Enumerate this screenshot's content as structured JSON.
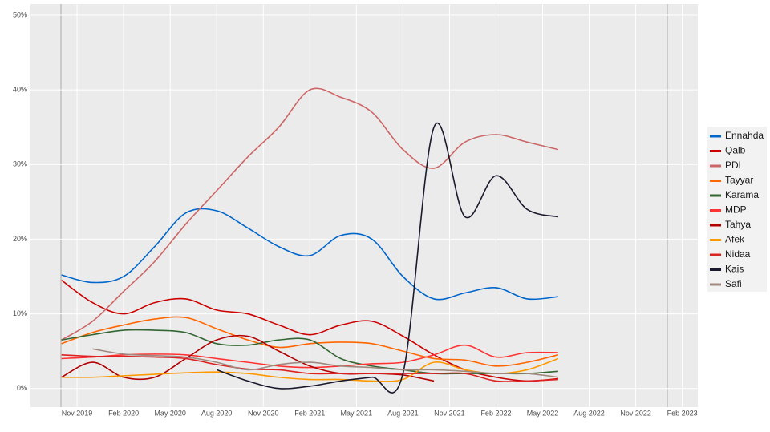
{
  "chart_data": {
    "type": "line",
    "x": [
      "2019-10",
      "2019-12",
      "2020-02",
      "2020-04",
      "2020-06",
      "2020-08",
      "2020-10",
      "2020-12",
      "2021-02",
      "2021-04",
      "2021-06",
      "2021-08",
      "2021-10",
      "2021-12",
      "2022-02",
      "2022-04",
      "2022-06"
    ],
    "series": [
      {
        "name": "Ennahda",
        "color": "#0066cc",
        "values": [
          15.2,
          14.2,
          15,
          19,
          23.5,
          23.8,
          21.5,
          19,
          17.8,
          20.5,
          20,
          15,
          12,
          12.8,
          13.5,
          12,
          12.3
        ]
      },
      {
        "name": "Qalb",
        "color": "#cc0000",
        "values": [
          14.5,
          11.5,
          10,
          11.5,
          12,
          10.5,
          10,
          8.5,
          7.2,
          8.5,
          9,
          7,
          4.5,
          2.5,
          1.5,
          1,
          1.3
        ]
      },
      {
        "name": "PDL",
        "color": "#cc6666",
        "values": [
          6.5,
          9,
          13,
          17,
          22,
          26.5,
          31,
          35,
          40,
          39,
          37,
          32,
          29.5,
          33,
          34,
          33,
          32
        ]
      },
      {
        "name": "Tayyar",
        "color": "#ff6600",
        "values": [
          6,
          7.5,
          8.5,
          9.3,
          9.5,
          8,
          6.5,
          5.5,
          6,
          6.2,
          6,
          5,
          4,
          3.8,
          3,
          3.5,
          4.5
        ]
      },
      {
        "name": "Karama",
        "color": "#336633",
        "values": [
          6.5,
          7.2,
          7.8,
          7.8,
          7.5,
          6,
          5.8,
          6.5,
          6.5,
          4,
          3,
          2.5,
          2,
          2,
          2,
          2,
          2.3
        ]
      },
      {
        "name": "MDP",
        "color": "#ff3333",
        "values": [
          4,
          4.2,
          4.5,
          4.6,
          4.5,
          4,
          3.5,
          3,
          2.8,
          3,
          3.3,
          3.5,
          4.5,
          5.8,
          4.2,
          4.8,
          4.8
        ]
      },
      {
        "name": "Tahya",
        "color": "#b30000",
        "values": [
          1.5,
          3.5,
          1.5,
          1.5,
          4,
          6.5,
          7,
          5,
          3,
          2,
          2,
          1.8,
          1,
          null,
          null,
          null,
          null
        ]
      },
      {
        "name": "Afek",
        "color": "#ff9900",
        "values": [
          1.5,
          1.5,
          1.7,
          1.9,
          2.1,
          2.2,
          2,
          1.5,
          1.2,
          1.2,
          1,
          1.2,
          3.5,
          2.5,
          2,
          2.5,
          4
        ]
      },
      {
        "name": "Nidaa",
        "color": "#dd2222",
        "values": [
          4.5,
          4.3,
          4.3,
          4.2,
          4,
          3.2,
          2.6,
          2.5,
          2,
          2,
          2,
          2,
          2,
          2,
          1,
          1,
          1.2
        ]
      },
      {
        "name": "Kais",
        "color": "#1a1a2e",
        "values": [
          null,
          null,
          null,
          null,
          null,
          2.5,
          1,
          0,
          0.3,
          1,
          1.5,
          2,
          35,
          23,
          28.5,
          24,
          23
        ]
      },
      {
        "name": "Safi",
        "color": "#a08a80",
        "values": [
          null,
          5.3,
          4.6,
          4.4,
          4.2,
          3.5,
          2.5,
          3.2,
          3.5,
          3,
          2.8,
          2.5,
          2.5,
          2.3,
          2,
          2,
          1.5
        ]
      }
    ],
    "xlim": [
      "2019-08",
      "2023-03"
    ],
    "xticks": [
      {
        "value": "2019-11",
        "label": "Nov 2019"
      },
      {
        "value": "2020-02",
        "label": "Feb 2020"
      },
      {
        "value": "2020-05",
        "label": "May 2020"
      },
      {
        "value": "2020-08",
        "label": "Aug 2020"
      },
      {
        "value": "2020-11",
        "label": "Nov 2020"
      },
      {
        "value": "2021-02",
        "label": "Feb 2021"
      },
      {
        "value": "2021-05",
        "label": "May 2021"
      },
      {
        "value": "2021-08",
        "label": "Aug 2021"
      },
      {
        "value": "2021-11",
        "label": "Nov 2021"
      },
      {
        "value": "2022-02",
        "label": "Feb 2022"
      },
      {
        "value": "2022-05",
        "label": "May 2022"
      },
      {
        "value": "2022-08",
        "label": "Aug 2022"
      },
      {
        "value": "2022-11",
        "label": "Nov 2022"
      },
      {
        "value": "2023-02",
        "label": "Feb 2023"
      }
    ],
    "ylim": [
      -2.5,
      51.5
    ],
    "yticks": [
      {
        "value": 0,
        "label": "0%"
      },
      {
        "value": 10,
        "label": "10%"
      },
      {
        "value": 20,
        "label": "20%"
      },
      {
        "value": 30,
        "label": "30%"
      },
      {
        "value": 40,
        "label": "40%"
      },
      {
        "value": 50,
        "label": "50%"
      }
    ],
    "grid": true
  }
}
